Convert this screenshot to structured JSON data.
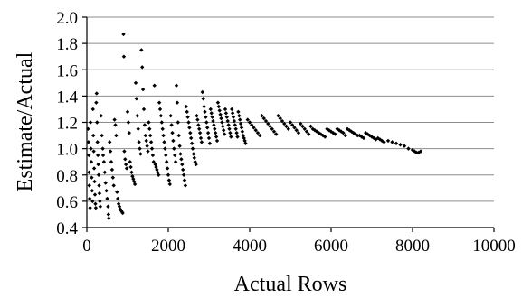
{
  "chart_data": {
    "type": "scatter",
    "title": "",
    "xlabel": "Actual Rows",
    "ylabel": "Estimate/Actual",
    "xlim": [
      0,
      10000
    ],
    "ylim": [
      0.4,
      2.0
    ],
    "xticks": [
      0,
      2000,
      4000,
      6000,
      8000,
      10000
    ],
    "yticks": [
      0.4,
      0.6,
      0.8,
      1.0,
      1.2,
      1.4,
      1.6,
      1.8,
      2.0
    ],
    "xtick_labels": [
      "0",
      "2000",
      "4000",
      "6000",
      "8000",
      "10000"
    ],
    "ytick_labels": [
      "0.4",
      "0.6",
      "0.8",
      "1.0",
      "1.2",
      "1.4",
      "1.6",
      "1.8",
      "2.0"
    ],
    "grid": "horizontal",
    "legend": "none",
    "marker_color": "#000000",
    "points": [
      [
        30,
        1.15
      ],
      [
        40,
        1.05
      ],
      [
        50,
        0.95
      ],
      [
        55,
        0.82
      ],
      [
        60,
        0.72
      ],
      [
        70,
        0.62
      ],
      [
        80,
        0.55
      ],
      [
        90,
        1.2
      ],
      [
        100,
        1.0
      ],
      [
        110,
        0.9
      ],
      [
        120,
        0.78
      ],
      [
        130,
        0.68
      ],
      [
        140,
        0.6
      ],
      [
        150,
        1.3
      ],
      [
        160,
        1.1
      ],
      [
        170,
        0.98
      ],
      [
        180,
        0.85
      ],
      [
        190,
        0.75
      ],
      [
        200,
        0.65
      ],
      [
        210,
        0.58
      ],
      [
        220,
        0.55
      ],
      [
        230,
        1.35
      ],
      [
        240,
        1.42
      ],
      [
        250,
        1.2
      ],
      [
        260,
        1.05
      ],
      [
        270,
        0.95
      ],
      [
        280,
        0.88
      ],
      [
        290,
        0.8
      ],
      [
        300,
        0.72
      ],
      [
        310,
        0.66
      ],
      [
        320,
        0.6
      ],
      [
        330,
        0.56
      ],
      [
        350,
        1.25
      ],
      [
        370,
        1.1
      ],
      [
        390,
        1.0
      ],
      [
        400,
        0.95
      ],
      [
        420,
        0.9
      ],
      [
        440,
        0.82
      ],
      [
        460,
        0.74
      ],
      [
        480,
        0.68
      ],
      [
        500,
        0.62
      ],
      [
        520,
        0.56
      ],
      [
        530,
        0.5
      ],
      [
        540,
        0.47
      ],
      [
        560,
        1.05
      ],
      [
        580,
        0.98
      ],
      [
        600,
        0.9
      ],
      [
        620,
        0.84
      ],
      [
        640,
        0.78
      ],
      [
        660,
        0.72
      ],
      [
        680,
        1.22
      ],
      [
        700,
        1.18
      ],
      [
        720,
        1.1
      ],
      [
        740,
        0.67
      ],
      [
        760,
        0.62
      ],
      [
        780,
        0.58
      ],
      [
        800,
        0.56
      ],
      [
        820,
        0.54
      ],
      [
        840,
        0.53
      ],
      [
        860,
        0.52
      ],
      [
        880,
        0.51
      ],
      [
        900,
        1.87
      ],
      [
        910,
        1.7
      ],
      [
        920,
        0.98
      ],
      [
        940,
        0.92
      ],
      [
        960,
        0.88
      ],
      [
        980,
        0.85
      ],
      [
        1000,
        1.28
      ],
      [
        1020,
        1.2
      ],
      [
        1040,
        1.12
      ],
      [
        1060,
        0.9
      ],
      [
        1080,
        0.86
      ],
      [
        1100,
        0.82
      ],
      [
        1120,
        0.79
      ],
      [
        1140,
        0.77
      ],
      [
        1160,
        0.75
      ],
      [
        1180,
        0.73
      ],
      [
        1200,
        1.5
      ],
      [
        1220,
        1.38
      ],
      [
        1240,
        1.25
      ],
      [
        1260,
        1.15
      ],
      [
        1280,
        1.05
      ],
      [
        1300,
        1.0
      ],
      [
        1320,
        0.96
      ],
      [
        1340,
        1.75
      ],
      [
        1360,
        1.62
      ],
      [
        1380,
        1.45
      ],
      [
        1400,
        1.3
      ],
      [
        1420,
        1.18
      ],
      [
        1440,
        1.1
      ],
      [
        1460,
        1.06
      ],
      [
        1480,
        1.02
      ],
      [
        1500,
        0.98
      ],
      [
        1520,
        1.2
      ],
      [
        1540,
        1.15
      ],
      [
        1560,
        1.1
      ],
      [
        1580,
        1.05
      ],
      [
        1600,
        1.0
      ],
      [
        1620,
        0.95
      ],
      [
        1640,
        0.9
      ],
      [
        1660,
        1.48
      ],
      [
        1680,
        0.88
      ],
      [
        1700,
        0.86
      ],
      [
        1720,
        0.84
      ],
      [
        1740,
        0.82
      ],
      [
        1760,
        0.8
      ],
      [
        1780,
        1.35
      ],
      [
        1800,
        1.3
      ],
      [
        1820,
        1.25
      ],
      [
        1840,
        1.2
      ],
      [
        1860,
        1.15
      ],
      [
        1880,
        1.1
      ],
      [
        1900,
        1.05
      ],
      [
        1920,
        1.0
      ],
      [
        1940,
        0.95
      ],
      [
        1960,
        0.9
      ],
      [
        1980,
        0.85
      ],
      [
        2000,
        0.8
      ],
      [
        2020,
        0.76
      ],
      [
        2040,
        0.73
      ],
      [
        2060,
        1.25
      ],
      [
        2080,
        1.18
      ],
      [
        2100,
        1.12
      ],
      [
        2120,
        1.06
      ],
      [
        2140,
        1.0
      ],
      [
        2160,
        0.95
      ],
      [
        2180,
        0.9
      ],
      [
        2200,
        1.48
      ],
      [
        2220,
        1.35
      ],
      [
        2240,
        1.2
      ],
      [
        2260,
        1.1
      ],
      [
        2280,
        1.02
      ],
      [
        2300,
        0.96
      ],
      [
        2320,
        0.92
      ],
      [
        2340,
        0.88
      ],
      [
        2360,
        0.84
      ],
      [
        2380,
        0.8
      ],
      [
        2400,
        0.76
      ],
      [
        2420,
        0.72
      ],
      [
        2440,
        1.32
      ],
      [
        2460,
        1.28
      ],
      [
        2480,
        1.24
      ],
      [
        2500,
        1.2
      ],
      [
        2520,
        1.16
      ],
      [
        2540,
        1.12
      ],
      [
        2560,
        1.08
      ],
      [
        2580,
        1.04
      ],
      [
        2600,
        1.0
      ],
      [
        2620,
        0.96
      ],
      [
        2640,
        0.93
      ],
      [
        2660,
        0.9
      ],
      [
        2680,
        0.88
      ],
      [
        2700,
        1.25
      ],
      [
        2720,
        1.22
      ],
      [
        2740,
        1.18
      ],
      [
        2760,
        1.15
      ],
      [
        2780,
        1.12
      ],
      [
        2800,
        1.08
      ],
      [
        2820,
        1.05
      ],
      [
        2840,
        1.43
      ],
      [
        2860,
        1.38
      ],
      [
        2880,
        1.32
      ],
      [
        2900,
        1.28
      ],
      [
        2920,
        1.24
      ],
      [
        2940,
        1.2
      ],
      [
        2960,
        1.16
      ],
      [
        2980,
        1.12
      ],
      [
        3000,
        1.08
      ],
      [
        3020,
        1.04
      ],
      [
        3040,
        1.3
      ],
      [
        3060,
        1.27
      ],
      [
        3080,
        1.24
      ],
      [
        3100,
        1.21
      ],
      [
        3120,
        1.18
      ],
      [
        3140,
        1.15
      ],
      [
        3160,
        1.12
      ],
      [
        3180,
        1.09
      ],
      [
        3200,
        1.06
      ],
      [
        3220,
        1.35
      ],
      [
        3240,
        1.32
      ],
      [
        3260,
        1.29
      ],
      [
        3280,
        1.26
      ],
      [
        3300,
        1.23
      ],
      [
        3320,
        1.2
      ],
      [
        3340,
        1.17
      ],
      [
        3360,
        1.14
      ],
      [
        3380,
        1.11
      ],
      [
        3400,
        1.3
      ],
      [
        3420,
        1.27
      ],
      [
        3440,
        1.24
      ],
      [
        3460,
        1.21
      ],
      [
        3480,
        1.18
      ],
      [
        3500,
        1.15
      ],
      [
        3520,
        1.12
      ],
      [
        3540,
        1.09
      ],
      [
        3560,
        1.3
      ],
      [
        3580,
        1.27
      ],
      [
        3600,
        1.24
      ],
      [
        3620,
        1.21
      ],
      [
        3640,
        1.18
      ],
      [
        3660,
        1.15
      ],
      [
        3680,
        1.12
      ],
      [
        3700,
        1.09
      ],
      [
        3720,
        1.28
      ],
      [
        3740,
        1.25
      ],
      [
        3760,
        1.22
      ],
      [
        3780,
        1.19
      ],
      [
        3800,
        1.16
      ],
      [
        3820,
        1.13
      ],
      [
        3840,
        1.1
      ],
      [
        3860,
        1.08
      ],
      [
        3880,
        1.06
      ],
      [
        3900,
        1.04
      ],
      [
        3950,
        1.22
      ],
      [
        4000,
        1.2
      ],
      [
        4050,
        1.18
      ],
      [
        4100,
        1.16
      ],
      [
        4150,
        1.14
      ],
      [
        4200,
        1.12
      ],
      [
        4250,
        1.1
      ],
      [
        4300,
        1.25
      ],
      [
        4350,
        1.23
      ],
      [
        4400,
        1.21
      ],
      [
        4450,
        1.19
      ],
      [
        4500,
        1.17
      ],
      [
        4550,
        1.15
      ],
      [
        4600,
        1.13
      ],
      [
        4650,
        1.11
      ],
      [
        4700,
        1.25
      ],
      [
        4750,
        1.23
      ],
      [
        4800,
        1.21
      ],
      [
        4850,
        1.19
      ],
      [
        4900,
        1.17
      ],
      [
        4950,
        1.15
      ],
      [
        5000,
        1.2
      ],
      [
        5050,
        1.18
      ],
      [
        5100,
        1.16
      ],
      [
        5150,
        1.14
      ],
      [
        5200,
        1.12
      ],
      [
        5250,
        1.19
      ],
      [
        5300,
        1.17
      ],
      [
        5350,
        1.15
      ],
      [
        5400,
        1.13
      ],
      [
        5450,
        1.11
      ],
      [
        5500,
        1.17
      ],
      [
        5550,
        1.15
      ],
      [
        5600,
        1.14
      ],
      [
        5650,
        1.13
      ],
      [
        5700,
        1.12
      ],
      [
        5750,
        1.11
      ],
      [
        5800,
        1.1
      ],
      [
        5850,
        1.09
      ],
      [
        5900,
        1.15
      ],
      [
        5950,
        1.14
      ],
      [
        6000,
        1.13
      ],
      [
        6050,
        1.12
      ],
      [
        6100,
        1.11
      ],
      [
        6150,
        1.15
      ],
      [
        6200,
        1.14
      ],
      [
        6250,
        1.13
      ],
      [
        6300,
        1.12
      ],
      [
        6350,
        1.1
      ],
      [
        6400,
        1.15
      ],
      [
        6450,
        1.14
      ],
      [
        6500,
        1.13
      ],
      [
        6550,
        1.12
      ],
      [
        6600,
        1.11
      ],
      [
        6650,
        1.1
      ],
      [
        6700,
        1.1
      ],
      [
        6750,
        1.09
      ],
      [
        6800,
        1.08
      ],
      [
        6850,
        1.12
      ],
      [
        6900,
        1.11
      ],
      [
        6950,
        1.1
      ],
      [
        7000,
        1.09
      ],
      [
        7050,
        1.08
      ],
      [
        7100,
        1.07
      ],
      [
        7150,
        1.08
      ],
      [
        7200,
        1.07
      ],
      [
        7250,
        1.06
      ],
      [
        7300,
        1.05
      ],
      [
        7400,
        1.06
      ],
      [
        7500,
        1.05
      ],
      [
        7600,
        1.04
      ],
      [
        7700,
        1.03
      ],
      [
        7800,
        1.02
      ],
      [
        7900,
        1.0
      ],
      [
        8000,
        0.99
      ],
      [
        8050,
        0.98
      ],
      [
        8100,
        0.97
      ],
      [
        8150,
        0.97
      ],
      [
        8200,
        0.98
      ]
    ]
  }
}
